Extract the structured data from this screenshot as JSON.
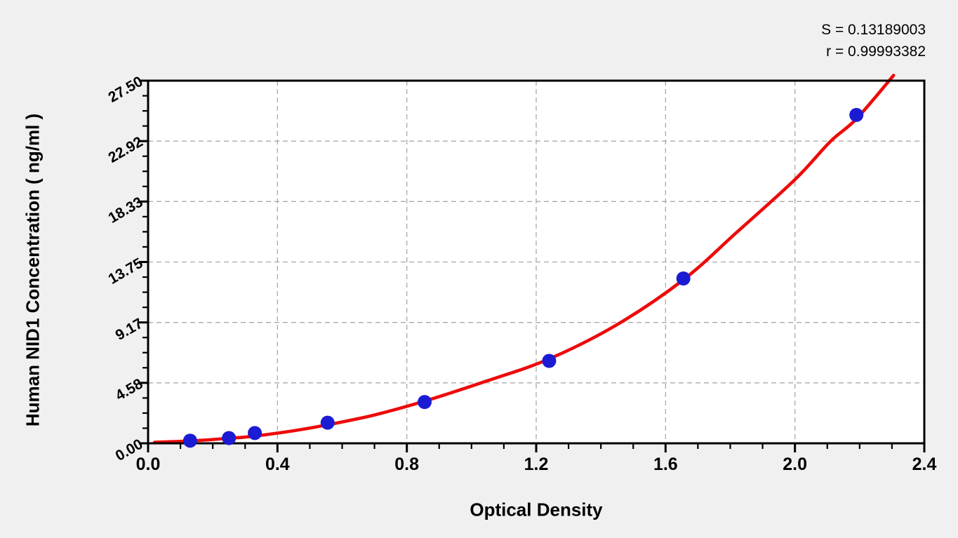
{
  "page": {
    "background": "#f0f0f0",
    "plot_background": "#ffffff"
  },
  "chart_data": {
    "type": "scatter",
    "title": "",
    "xlabel": "Optical Density",
    "ylabel": "Human NID1 Concentration ( ng/ml )",
    "xlim": [
      0,
      2.4
    ],
    "ylim": [
      0,
      27.5
    ],
    "x_ticks": {
      "values": [
        0.0,
        0.4,
        0.8,
        1.2,
        1.6,
        2.0,
        2.4
      ],
      "labels": [
        "0.0",
        "0.4",
        "0.8",
        "1.2",
        "1.6",
        "2.0",
        "2.4"
      ],
      "minor_step": 0.1
    },
    "y_ticks": {
      "values": [
        0,
        4.5833,
        9.1667,
        13.75,
        18.3333,
        22.9167,
        27.5
      ],
      "labels": [
        "0.00",
        "4.58",
        "9.17",
        "13.75",
        "18.33",
        "22.92",
        "27.50"
      ],
      "minor_step": 1.145833
    },
    "grid": {
      "style": "dashed",
      "color": "#a9a9a9"
    },
    "legend": "none",
    "colors": {
      "curve": "#ee0a0a",
      "points": "#1b1bd4",
      "axis": "#000000"
    },
    "series": [
      {
        "name": "standard-points",
        "type": "scatter",
        "od": [
          0.13,
          0.25,
          0.33,
          0.555,
          0.855,
          1.24,
          1.655,
          2.19
        ],
        "concentration": [
          0.2,
          0.4,
          0.78,
          1.56,
          3.13,
          6.25,
          12.5,
          24.9
        ]
      },
      {
        "name": "fitted-curve",
        "type": "line",
        "od": [
          0.02,
          0.13,
          0.25,
          0.33,
          0.45,
          0.555,
          0.7,
          0.855,
          1.05,
          1.24,
          1.45,
          1.655,
          1.82,
          2.0,
          2.11,
          2.19,
          2.305
        ],
        "concentration": [
          0.08,
          0.18,
          0.38,
          0.55,
          0.95,
          1.4,
          2.15,
          3.2,
          4.75,
          6.4,
          9.0,
          12.4,
          16.0,
          20.0,
          22.9,
          24.6,
          27.9
        ]
      }
    ],
    "annotations": [
      "S = 0.13189003",
      "r = 0.99993382"
    ]
  }
}
